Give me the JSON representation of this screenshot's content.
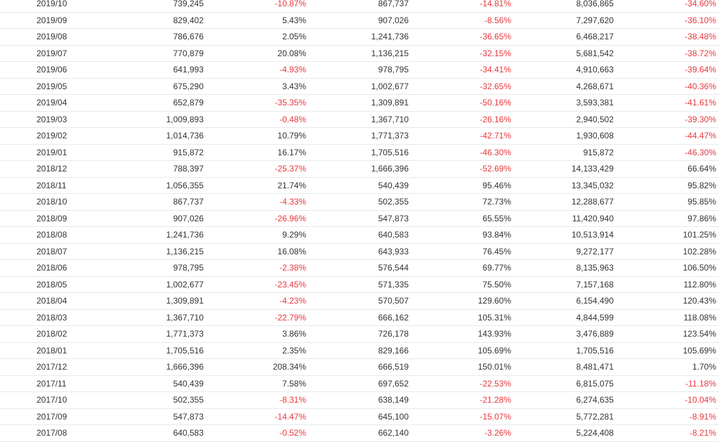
{
  "rows": [
    {
      "date": "2019/10",
      "a": "739,245",
      "b": "-10.87%",
      "c": "867,737",
      "d": "-14.81%",
      "e": "8,036,865",
      "f": "-34.60%"
    },
    {
      "date": "2019/09",
      "a": "829,402",
      "b": "5.43%",
      "c": "907,026",
      "d": "-8.56%",
      "e": "7,297,620",
      "f": "-36.10%"
    },
    {
      "date": "2019/08",
      "a": "786,676",
      "b": "2.05%",
      "c": "1,241,736",
      "d": "-36.65%",
      "e": "6,468,217",
      "f": "-38.48%"
    },
    {
      "date": "2019/07",
      "a": "770,879",
      "b": "20.08%",
      "c": "1,136,215",
      "d": "-32.15%",
      "e": "5,681,542",
      "f": "-38.72%"
    },
    {
      "date": "2019/06",
      "a": "641,993",
      "b": "-4.93%",
      "c": "978,795",
      "d": "-34.41%",
      "e": "4,910,663",
      "f": "-39.64%"
    },
    {
      "date": "2019/05",
      "a": "675,290",
      "b": "3.43%",
      "c": "1,002,677",
      "d": "-32.65%",
      "e": "4,268,671",
      "f": "-40.36%"
    },
    {
      "date": "2019/04",
      "a": "652,879",
      "b": "-35.35%",
      "c": "1,309,891",
      "d": "-50.16%",
      "e": "3,593,381",
      "f": "-41.61%"
    },
    {
      "date": "2019/03",
      "a": "1,009,893",
      "b": "-0.48%",
      "c": "1,367,710",
      "d": "-26.16%",
      "e": "2,940,502",
      "f": "-39.30%"
    },
    {
      "date": "2019/02",
      "a": "1,014,736",
      "b": "10.79%",
      "c": "1,771,373",
      "d": "-42.71%",
      "e": "1,930,608",
      "f": "-44.47%"
    },
    {
      "date": "2019/01",
      "a": "915,872",
      "b": "16.17%",
      "c": "1,705,516",
      "d": "-46.30%",
      "e": "915,872",
      "f": "-46.30%"
    },
    {
      "date": "2018/12",
      "a": "788,397",
      "b": "-25.37%",
      "c": "1,666,396",
      "d": "-52.69%",
      "e": "14,133,429",
      "f": "66.64%"
    },
    {
      "date": "2018/11",
      "a": "1,056,355",
      "b": "21.74%",
      "c": "540,439",
      "d": "95.46%",
      "e": "13,345,032",
      "f": "95.82%"
    },
    {
      "date": "2018/10",
      "a": "867,737",
      "b": "-4.33%",
      "c": "502,355",
      "d": "72.73%",
      "e": "12,288,677",
      "f": "95.85%"
    },
    {
      "date": "2018/09",
      "a": "907,026",
      "b": "-26.96%",
      "c": "547,873",
      "d": "65.55%",
      "e": "11,420,940",
      "f": "97.86%"
    },
    {
      "date": "2018/08",
      "a": "1,241,736",
      "b": "9.29%",
      "c": "640,583",
      "d": "93.84%",
      "e": "10,513,914",
      "f": "101.25%"
    },
    {
      "date": "2018/07",
      "a": "1,136,215",
      "b": "16.08%",
      "c": "643,933",
      "d": "76.45%",
      "e": "9,272,177",
      "f": "102.28%"
    },
    {
      "date": "2018/06",
      "a": "978,795",
      "b": "-2.38%",
      "c": "576,544",
      "d": "69.77%",
      "e": "8,135,963",
      "f": "106.50%"
    },
    {
      "date": "2018/05",
      "a": "1,002,677",
      "b": "-23.45%",
      "c": "571,335",
      "d": "75.50%",
      "e": "7,157,168",
      "f": "112.80%"
    },
    {
      "date": "2018/04",
      "a": "1,309,891",
      "b": "-4.23%",
      "c": "570,507",
      "d": "129.60%",
      "e": "6,154,490",
      "f": "120.43%"
    },
    {
      "date": "2018/03",
      "a": "1,367,710",
      "b": "-22.79%",
      "c": "666,162",
      "d": "105.31%",
      "e": "4,844,599",
      "f": "118.08%"
    },
    {
      "date": "2018/02",
      "a": "1,771,373",
      "b": "3.86%",
      "c": "726,178",
      "d": "143.93%",
      "e": "3,476,889",
      "f": "123.54%"
    },
    {
      "date": "2018/01",
      "a": "1,705,516",
      "b": "2.35%",
      "c": "829,166",
      "d": "105.69%",
      "e": "1,705,516",
      "f": "105.69%"
    },
    {
      "date": "2017/12",
      "a": "1,666,396",
      "b": "208.34%",
      "c": "666,519",
      "d": "150.01%",
      "e": "8,481,471",
      "f": "1.70%"
    },
    {
      "date": "2017/11",
      "a": "540,439",
      "b": "7.58%",
      "c": "697,652",
      "d": "-22.53%",
      "e": "6,815,075",
      "f": "-11.18%"
    },
    {
      "date": "2017/10",
      "a": "502,355",
      "b": "-8.31%",
      "c": "638,149",
      "d": "-21.28%",
      "e": "6,274,635",
      "f": "-10.04%"
    },
    {
      "date": "2017/09",
      "a": "547,873",
      "b": "-14.47%",
      "c": "645,100",
      "d": "-15.07%",
      "e": "5,772,281",
      "f": "-8.91%"
    },
    {
      "date": "2017/08",
      "a": "640,583",
      "b": "-0.52%",
      "c": "662,140",
      "d": "-3.26%",
      "e": "5,224,408",
      "f": "-8.21%"
    }
  ],
  "colors": {
    "negative": "#e8383d",
    "text": "#333333",
    "row_border": "#e6e9ee"
  }
}
